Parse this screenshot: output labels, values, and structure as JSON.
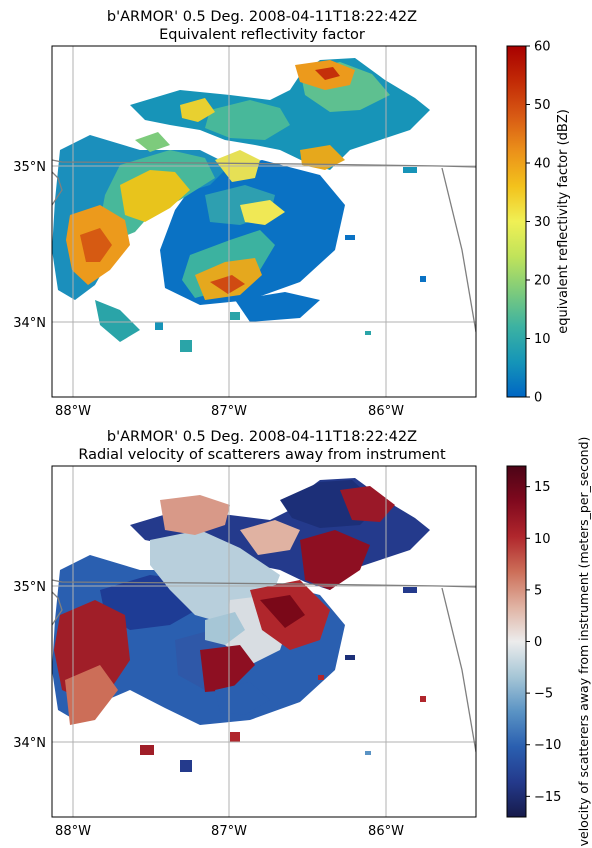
{
  "chart_data": [
    {
      "type": "heatmap",
      "title_line1": "b'ARMOR' 0.5 Deg. 2008-04-11T18:22:42Z",
      "title_line2": "Equivalent reflectivity factor",
      "x_ticks": [
        {
          "value": -88,
          "label": "88°W"
        },
        {
          "value": -87,
          "label": "87°W"
        },
        {
          "value": -86,
          "label": "86°W"
        }
      ],
      "y_ticks": [
        {
          "value": 35,
          "label": "35°N"
        },
        {
          "value": 34,
          "label": "34°N"
        }
      ],
      "xlim": [
        -88.2,
        -85.4
      ],
      "ylim": [
        33.5,
        35.8
      ],
      "grid": true,
      "colorbar": {
        "label": "equivalent reflectivity factor (dBZ)",
        "range": [
          0,
          60
        ],
        "ticks": [
          0,
          10,
          20,
          30,
          40,
          50,
          60
        ],
        "tick_labels": [
          "0",
          "10",
          "20",
          "30",
          "40",
          "50",
          "60"
        ],
        "colors": [
          "#0066c4",
          "#1595b8",
          "#3cb2a2",
          "#7dcb7c",
          "#c0e35a",
          "#f0f055",
          "#f3c21c",
          "#eb911a",
          "#d85a14",
          "#c22a06",
          "#a80000"
        ]
      }
    },
    {
      "type": "heatmap",
      "title_line1": "b'ARMOR' 0.5 Deg. 2008-04-11T18:22:42Z",
      "title_line2": "Radial velocity of scatterers away from instrument",
      "x_ticks": [
        {
          "value": -88,
          "label": "88°W"
        },
        {
          "value": -87,
          "label": "87°W"
        },
        {
          "value": -86,
          "label": "86°W"
        }
      ],
      "y_ticks": [
        {
          "value": 35,
          "label": "35°N"
        },
        {
          "value": 34,
          "label": "34°N"
        }
      ],
      "xlim": [
        -88.2,
        -85.4
      ],
      "ylim": [
        33.5,
        35.8
      ],
      "grid": true,
      "colorbar": {
        "label": "velocity of scatterers away from instrument (meters_per_second)",
        "range": [
          -17,
          17
        ],
        "ticks": [
          -15,
          -10,
          -5,
          0,
          5,
          10,
          15
        ],
        "tick_labels": [
          "−15",
          "−10",
          "−5",
          "0",
          "5",
          "10",
          "15"
        ],
        "colors": [
          "#161a4a",
          "#243a8c",
          "#2a5fb0",
          "#5a93c4",
          "#a6c6d6",
          "#ececec",
          "#e0b2a2",
          "#cc6e58",
          "#b0262c",
          "#80091e",
          "#4c0416"
        ]
      }
    }
  ]
}
